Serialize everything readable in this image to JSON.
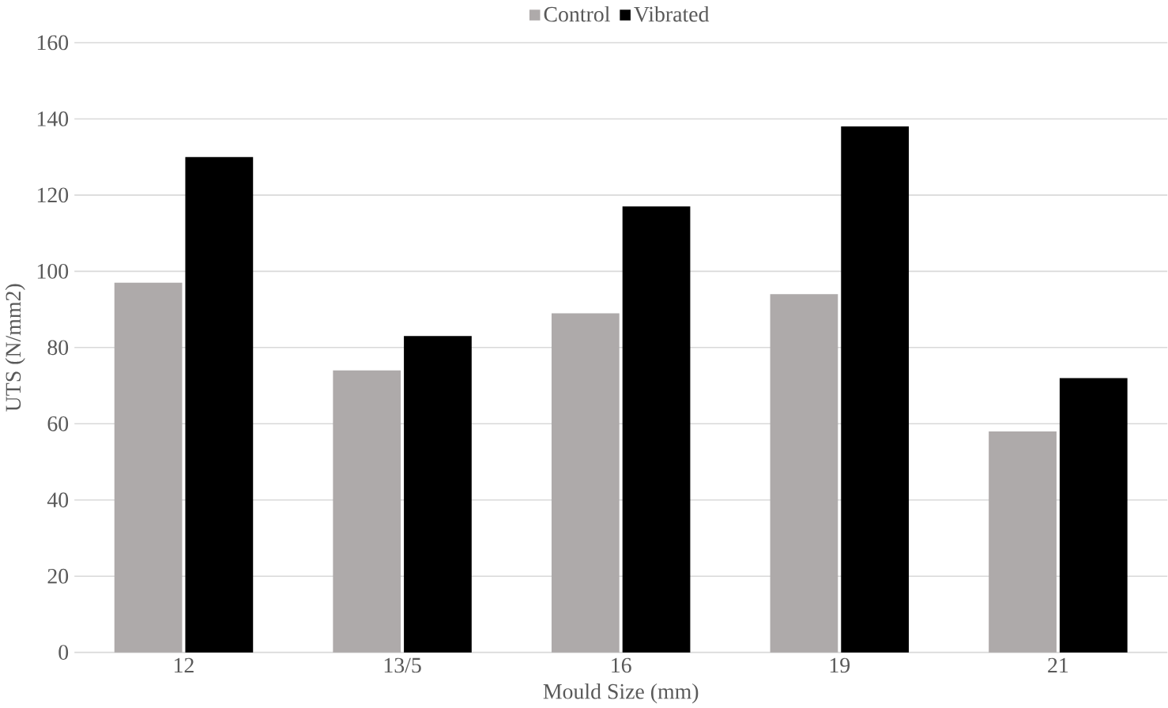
{
  "chart_data": {
    "type": "bar",
    "xlabel": "Mould Size (mm)",
    "ylabel": "UTS (N/mm2)",
    "categories": [
      "12",
      "13/5",
      "16",
      "19",
      "21"
    ],
    "series": [
      {
        "name": "Control",
        "color": "#aeaaaa",
        "values": [
          97,
          74,
          89,
          94,
          58
        ]
      },
      {
        "name": "Vibrated",
        "color": "#000000",
        "values": [
          130,
          83,
          117,
          138,
          72
        ]
      }
    ],
    "ylim": [
      0,
      160
    ],
    "yticks": [
      0,
      20,
      40,
      60,
      80,
      100,
      120,
      140,
      160
    ],
    "grid": "y",
    "legend": "top"
  }
}
